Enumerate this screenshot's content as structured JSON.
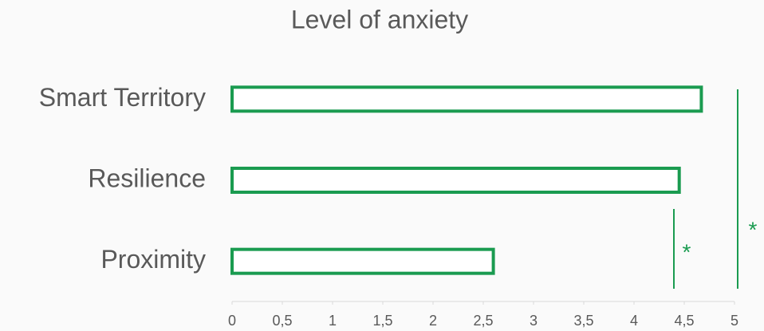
{
  "chart_data": {
    "type": "bar",
    "orientation": "horizontal",
    "title": "Level of anxiety",
    "categories": [
      "Smart Territory",
      "Resilience",
      "Proximity"
    ],
    "values": [
      4.67,
      4.45,
      2.6
    ],
    "color": "#1a9b50",
    "xlim": [
      0,
      5
    ],
    "xticks": [
      0,
      {
        "value": 0.5,
        "label": "0,5"
      },
      1,
      {
        "value": 1.5,
        "label": "1,5"
      },
      2,
      {
        "value": 2.5,
        "label": "2,5"
      },
      3,
      {
        "value": 3.5,
        "label": "3,5"
      },
      4,
      {
        "value": 4.5,
        "label": "4,5"
      },
      5
    ],
    "annotations": [
      "*",
      "*"
    ]
  }
}
